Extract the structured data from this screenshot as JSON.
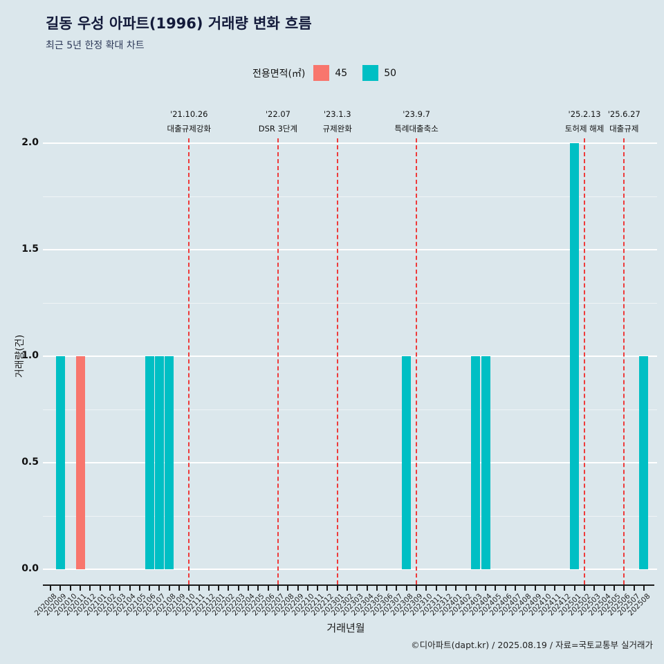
{
  "header": {
    "title": "길동 우성 아파트(1996) 거래량 변화 흐름",
    "subtitle": "최근 5년 한정 확대 차트"
  },
  "legend": {
    "label": "전용면적(㎡)",
    "items": [
      {
        "label": "45",
        "color": "#F8766D"
      },
      {
        "label": "50",
        "color": "#00BFC4"
      }
    ]
  },
  "colors": {
    "background": "#dbe7ec",
    "grid": "#ffffff",
    "event_line": "#ee3a3a",
    "title_text": "#131a3a"
  },
  "chart_data": {
    "type": "bar",
    "title": "길동 우성 아파트(1996) 거래량 변화 흐름",
    "xlabel": "거래년월",
    "ylabel": "거래량(건)",
    "ylim": [
      0,
      2
    ],
    "yticks": [
      "0.0",
      "0.5",
      "1.0",
      "1.5",
      "2.0"
    ],
    "grid": true,
    "legend_position": "top",
    "categories": [
      "202008",
      "202009",
      "202010",
      "202011",
      "202012",
      "202101",
      "202102",
      "202103",
      "202104",
      "202105",
      "202106",
      "202107",
      "202108",
      "202109",
      "202110",
      "202111",
      "202112",
      "202201",
      "202202",
      "202203",
      "202204",
      "202205",
      "202206",
      "202207",
      "202208",
      "202209",
      "202210",
      "202211",
      "202212",
      "202301",
      "202302",
      "202303",
      "202304",
      "202305",
      "202306",
      "202307",
      "202308",
      "202309",
      "202310",
      "202311",
      "202312",
      "202401",
      "202402",
      "202403",
      "202404",
      "202405",
      "202406",
      "202407",
      "202408",
      "202409",
      "202410",
      "202411",
      "202412",
      "202501",
      "202502",
      "202503",
      "202504",
      "202505",
      "202506",
      "202507",
      "202508"
    ],
    "series": [
      {
        "name": "45",
        "color": "#F8766D",
        "points": {
          "202011": 1
        }
      },
      {
        "name": "50",
        "color": "#00BFC4",
        "points": {
          "202009": 1,
          "202106": 1,
          "202107": 1,
          "202108": 1,
          "202308": 1,
          "202403": 1,
          "202404": 1,
          "202501": 2,
          "202508": 1
        }
      }
    ],
    "annotations": [
      {
        "x": "202110",
        "date": "'21.10.26",
        "label": "대출규제강화"
      },
      {
        "x": "202207",
        "date": "'22.07",
        "label": "DSR 3단계"
      },
      {
        "x": "202301",
        "date": "'23.1.3",
        "label": "규제완화"
      },
      {
        "x": "202309",
        "date": "'23.9.7",
        "label": "특례대출축소"
      },
      {
        "x": "202502",
        "date": "'25.2.13",
        "label": "토허제 해제"
      },
      {
        "x": "202506",
        "date": "'25.6.27",
        "label": "대출규제"
      }
    ]
  },
  "footer": {
    "credit": "©디아파트(dapt.kr) / 2025.08.19 / 자료=국토교통부 실거래가"
  }
}
